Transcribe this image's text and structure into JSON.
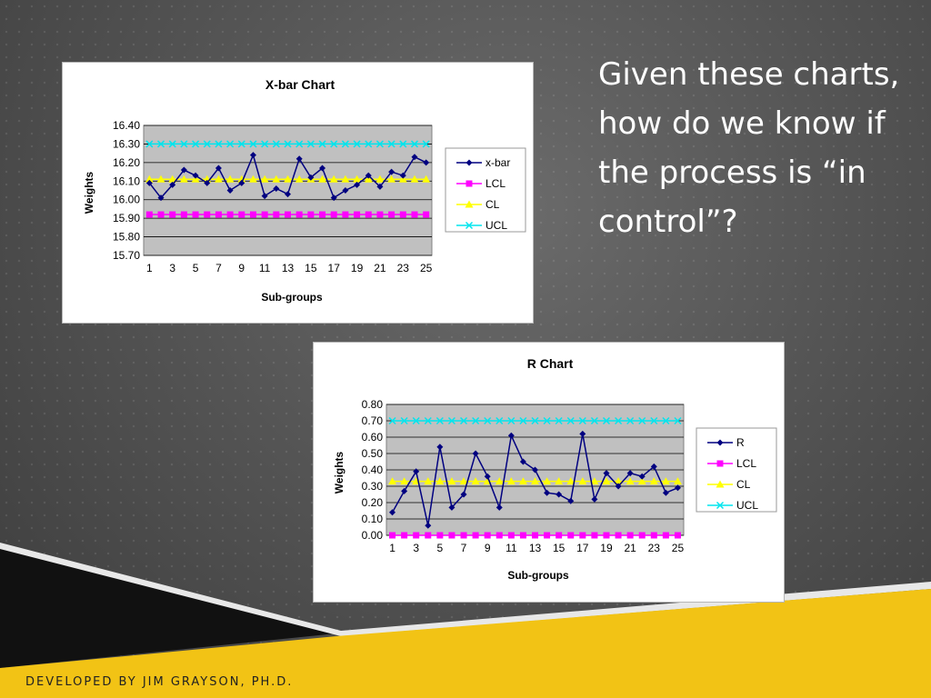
{
  "slide": {
    "heading": "Given these charts, how do we know if the process is “in control”?",
    "footer": "DEVELOPED BY JIM GRAYSON, PH.D.",
    "colors": {
      "accent_yellow": "#f2c315",
      "black_band": "#111111"
    }
  },
  "chart_data": [
    {
      "id": "xbar",
      "type": "line",
      "title": "X-bar Chart",
      "xlabel": "Sub-groups",
      "ylabel": "Weights",
      "ylim": [
        15.7,
        16.4
      ],
      "yticks": [
        "15.70",
        "15.80",
        "15.90",
        "16.00",
        "16.10",
        "16.20",
        "16.30",
        "16.40"
      ],
      "xticks": [
        "1",
        "3",
        "5",
        "7",
        "9",
        "11",
        "13",
        "15",
        "17",
        "19",
        "21",
        "23",
        "25"
      ],
      "x": [
        1,
        2,
        3,
        4,
        5,
        6,
        7,
        8,
        9,
        10,
        11,
        12,
        13,
        14,
        15,
        16,
        17,
        18,
        19,
        20,
        21,
        22,
        23,
        24,
        25
      ],
      "grid": true,
      "legend_position": "right",
      "series": [
        {
          "name": "x-bar",
          "color": "#000080",
          "marker": "diamond",
          "values": [
            16.09,
            16.01,
            16.08,
            16.16,
            16.13,
            16.09,
            16.17,
            16.05,
            16.09,
            16.24,
            16.02,
            16.06,
            16.03,
            16.22,
            16.12,
            16.17,
            16.01,
            16.05,
            16.08,
            16.13,
            16.07,
            16.15,
            16.13,
            16.23,
            16.2
          ]
        },
        {
          "name": "LCL",
          "color": "#ff00ff",
          "marker": "square",
          "values": [
            15.92,
            15.92,
            15.92,
            15.92,
            15.92,
            15.92,
            15.92,
            15.92,
            15.92,
            15.92,
            15.92,
            15.92,
            15.92,
            15.92,
            15.92,
            15.92,
            15.92,
            15.92,
            15.92,
            15.92,
            15.92,
            15.92,
            15.92,
            15.92,
            15.92
          ]
        },
        {
          "name": "CL",
          "color": "#ffff00",
          "marker": "triangle",
          "values": [
            16.11,
            16.11,
            16.11,
            16.11,
            16.11,
            16.11,
            16.11,
            16.11,
            16.11,
            16.11,
            16.11,
            16.11,
            16.11,
            16.11,
            16.11,
            16.11,
            16.11,
            16.11,
            16.11,
            16.11,
            16.11,
            16.11,
            16.11,
            16.11,
            16.11
          ]
        },
        {
          "name": "UCL",
          "color": "#00e5ee",
          "marker": "x",
          "values": [
            16.3,
            16.3,
            16.3,
            16.3,
            16.3,
            16.3,
            16.3,
            16.3,
            16.3,
            16.3,
            16.3,
            16.3,
            16.3,
            16.3,
            16.3,
            16.3,
            16.3,
            16.3,
            16.3,
            16.3,
            16.3,
            16.3,
            16.3,
            16.3,
            16.3
          ]
        }
      ]
    },
    {
      "id": "r",
      "type": "line",
      "title": "R Chart",
      "xlabel": "Sub-groups",
      "ylabel": "Weights",
      "ylim": [
        0.0,
        0.8
      ],
      "yticks": [
        "0.00",
        "0.10",
        "0.20",
        "0.30",
        "0.40",
        "0.50",
        "0.60",
        "0.70",
        "0.80"
      ],
      "xticks": [
        "1",
        "3",
        "5",
        "7",
        "9",
        "11",
        "13",
        "15",
        "17",
        "19",
        "21",
        "23",
        "25"
      ],
      "x": [
        1,
        2,
        3,
        4,
        5,
        6,
        7,
        8,
        9,
        10,
        11,
        12,
        13,
        14,
        15,
        16,
        17,
        18,
        19,
        20,
        21,
        22,
        23,
        24,
        25
      ],
      "grid": true,
      "legend_position": "right",
      "series": [
        {
          "name": "R",
          "color": "#000080",
          "marker": "diamond",
          "values": [
            0.14,
            0.27,
            0.39,
            0.06,
            0.54,
            0.17,
            0.25,
            0.5,
            0.36,
            0.17,
            0.61,
            0.45,
            0.4,
            0.26,
            0.25,
            0.21,
            0.62,
            0.22,
            0.38,
            0.3,
            0.38,
            0.36,
            0.42,
            0.26,
            0.29
          ]
        },
        {
          "name": "LCL",
          "color": "#ff00ff",
          "marker": "square",
          "values": [
            0,
            0,
            0,
            0,
            0,
            0,
            0,
            0,
            0,
            0,
            0,
            0,
            0,
            0,
            0,
            0,
            0,
            0,
            0,
            0,
            0,
            0,
            0,
            0,
            0
          ]
        },
        {
          "name": "CL",
          "color": "#ffff00",
          "marker": "triangle",
          "values": [
            0.33,
            0.33,
            0.33,
            0.33,
            0.33,
            0.33,
            0.33,
            0.33,
            0.33,
            0.33,
            0.33,
            0.33,
            0.33,
            0.33,
            0.33,
            0.33,
            0.33,
            0.33,
            0.33,
            0.33,
            0.33,
            0.33,
            0.33,
            0.33,
            0.33
          ]
        },
        {
          "name": "UCL",
          "color": "#00e5ee",
          "marker": "x",
          "values": [
            0.7,
            0.7,
            0.7,
            0.7,
            0.7,
            0.7,
            0.7,
            0.7,
            0.7,
            0.7,
            0.7,
            0.7,
            0.7,
            0.7,
            0.7,
            0.7,
            0.7,
            0.7,
            0.7,
            0.7,
            0.7,
            0.7,
            0.7,
            0.7,
            0.7
          ]
        }
      ]
    }
  ]
}
